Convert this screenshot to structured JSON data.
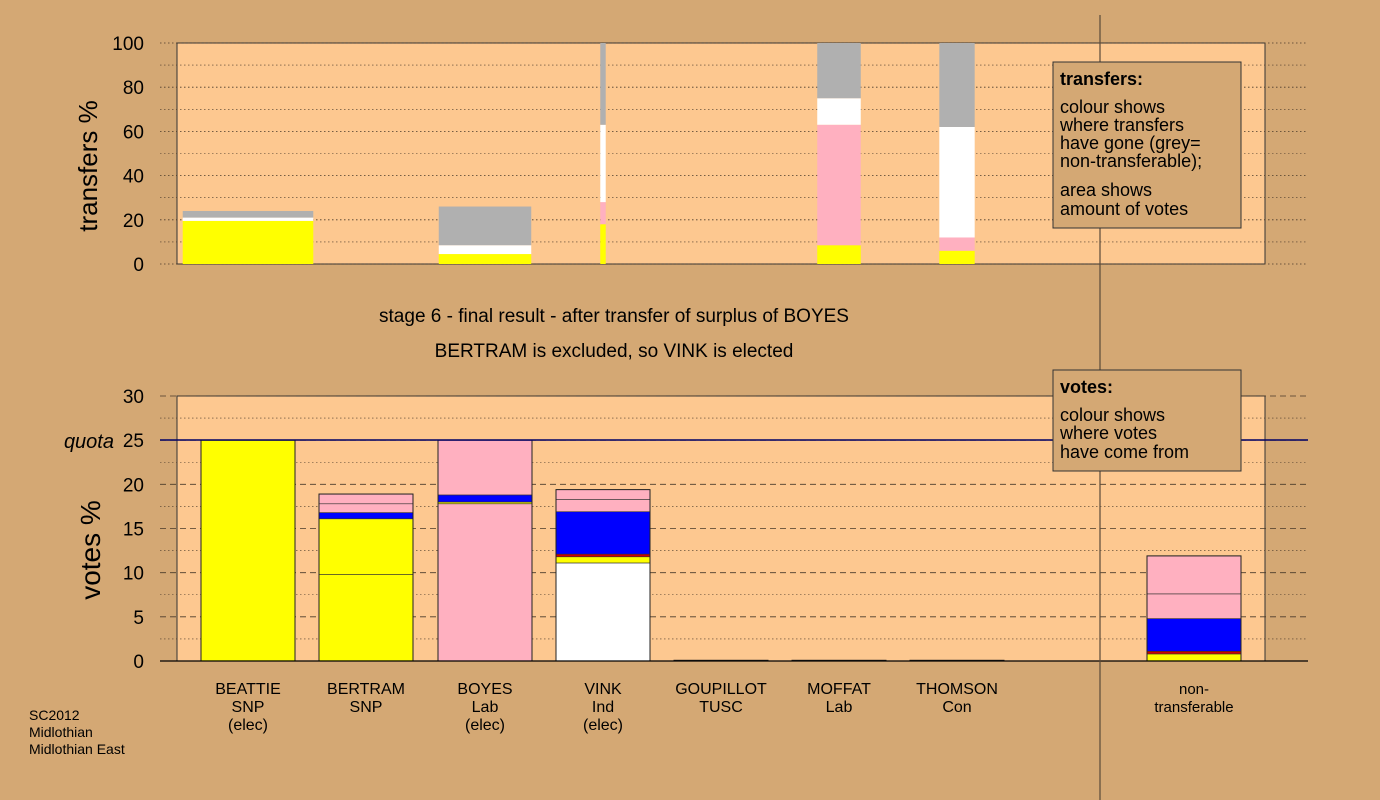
{
  "colors": {
    "page_bg": "#d4a874",
    "plot_bg": "#fdc890",
    "yellow": "#ffff00",
    "pink": "#ffb0c0",
    "blue": "#0000ff",
    "white": "#ffffff",
    "grey": "#b0b0b0",
    "red": "#d00000",
    "olive": "#a0a040",
    "quota_line": "#000066"
  },
  "stage_text": {
    "line1": "stage 6 - final result - after transfer of surplus of BOYES",
    "line2": "BERTRAM is excluded, so VINK is elected"
  },
  "transfers_legend": {
    "title": "transfers:",
    "lines1": [
      "colour shows",
      "where transfers",
      "have gone (grey=",
      "non-transferable);"
    ],
    "lines2": [
      "area shows",
      "amount of votes"
    ]
  },
  "votes_legend": {
    "title": "votes:",
    "lines": [
      "colour shows",
      "where votes",
      "have come from"
    ]
  },
  "footer": {
    "line1": "SC2012",
    "line2": "Midlothian",
    "line3": "Midlothian East"
  },
  "chart_data": [
    {
      "id": "transfers",
      "type": "bar",
      "stacked": true,
      "ylabel": "transfers %",
      "ylim": [
        0,
        100
      ],
      "yticks": [
        0,
        20,
        40,
        60,
        80,
        100
      ],
      "grid": true,
      "bars": [
        {
          "cand": 0,
          "width": 0.24,
          "segments": [
            {
              "color": "yellow",
              "from": 0,
              "to": 19.5
            },
            {
              "color": "white",
              "from": 19.5,
              "to": 21
            },
            {
              "color": "grey",
              "from": 21,
              "to": 24
            }
          ]
        },
        {
          "cand": 2,
          "width": 0.17,
          "segments": [
            {
              "color": "yellow",
              "from": 0,
              "to": 4.5
            },
            {
              "color": "white",
              "from": 4.5,
              "to": 8.5
            },
            {
              "color": "grey",
              "from": 8.5,
              "to": 26
            }
          ]
        },
        {
          "cand": 3,
          "width": 0.01,
          "segments": [
            {
              "color": "yellow",
              "from": 0,
              "to": 18
            },
            {
              "color": "pink",
              "from": 18,
              "to": 28
            },
            {
              "color": "white",
              "from": 28,
              "to": 63
            },
            {
              "color": "grey",
              "from": 63,
              "to": 100
            }
          ]
        },
        {
          "cand": 5,
          "width": 0.08,
          "segments": [
            {
              "color": "yellow",
              "from": 0,
              "to": 8.5
            },
            {
              "color": "pink",
              "from": 8.5,
              "to": 63
            },
            {
              "color": "white",
              "from": 63,
              "to": 75
            },
            {
              "color": "grey",
              "from": 75,
              "to": 100
            }
          ]
        },
        {
          "cand": 6,
          "width": 0.065,
          "segments": [
            {
              "color": "yellow",
              "from": 0,
              "to": 6
            },
            {
              "color": "pink",
              "from": 6,
              "to": 12
            },
            {
              "color": "white",
              "from": 12,
              "to": 62
            },
            {
              "color": "grey",
              "from": 62,
              "to": 100
            }
          ]
        }
      ]
    },
    {
      "id": "votes",
      "type": "bar",
      "stacked": true,
      "ylabel": "votes %",
      "ylim": [
        0,
        30
      ],
      "yticks": [
        0,
        5,
        10,
        15,
        20,
        25,
        30
      ],
      "quota": {
        "label": "quota",
        "value": 25
      },
      "grid": true,
      "categories": [
        [
          "BEATTIE",
          "SNP",
          "(elec)"
        ],
        [
          "BERTRAM",
          "SNP"
        ],
        [
          "BOYES",
          "Lab",
          "(elec)"
        ],
        [
          "VINK",
          "Ind",
          "(elec)"
        ],
        [
          "GOUPILLOT",
          "TUSC"
        ],
        [
          "MOFFAT",
          "Lab"
        ],
        [
          "THOMSON",
          "Con"
        ],
        [
          "non-",
          "transferable"
        ]
      ],
      "bars": [
        {
          "cand": 0,
          "segments": [
            {
              "color": "yellow",
              "from": 0,
              "to": 25
            }
          ]
        },
        {
          "cand": 1,
          "segments": [
            {
              "color": "yellow",
              "from": 0,
              "to": 9.8
            },
            {
              "color": "yellow",
              "from": 9.8,
              "to": 16.1
            },
            {
              "color": "blue",
              "from": 16.1,
              "to": 16.8
            },
            {
              "color": "pink",
              "from": 16.8,
              "to": 17.8
            },
            {
              "color": "pink",
              "from": 17.8,
              "to": 18.9
            }
          ]
        },
        {
          "cand": 2,
          "segments": [
            {
              "color": "pink",
              "from": 0,
              "to": 17.8
            },
            {
              "color": "yellow",
              "from": 17.8,
              "to": 18.0
            },
            {
              "color": "blue",
              "from": 18.0,
              "to": 18.8
            },
            {
              "color": "pink",
              "from": 18.8,
              "to": 25
            }
          ]
        },
        {
          "cand": 3,
          "segments": [
            {
              "color": "white",
              "from": 0,
              "to": 11.1
            },
            {
              "color": "yellow",
              "from": 11.1,
              "to": 11.8
            },
            {
              "color": "red",
              "from": 11.8,
              "to": 12.1
            },
            {
              "color": "blue",
              "from": 12.1,
              "to": 16.9
            },
            {
              "color": "pink",
              "from": 16.9,
              "to": 18.3
            },
            {
              "color": "pink",
              "from": 18.3,
              "to": 19.4
            }
          ]
        },
        {
          "cand": 4,
          "segments": [
            {
              "color": "yellow",
              "from": 0,
              "to": 0.08
            }
          ]
        },
        {
          "cand": 5,
          "segments": [
            {
              "color": "yellow",
              "from": 0,
              "to": 0.08
            }
          ]
        },
        {
          "cand": 6,
          "segments": [
            {
              "color": "yellow",
              "from": 0,
              "to": 0.08
            }
          ]
        },
        {
          "cand": 7,
          "segments": [
            {
              "color": "yellow",
              "from": 0,
              "to": 0.8
            },
            {
              "color": "red",
              "from": 0.8,
              "to": 1.1
            },
            {
              "color": "blue",
              "from": 1.1,
              "to": 4.8
            },
            {
              "color": "pink",
              "from": 4.8,
              "to": 7.6
            },
            {
              "color": "pink",
              "from": 7.6,
              "to": 11.9
            }
          ]
        }
      ]
    }
  ]
}
